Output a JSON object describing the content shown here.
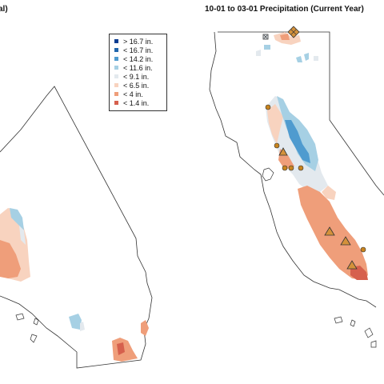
{
  "titles": {
    "left_fragment": "al)",
    "right": "10-01 to 03-01 Precipitation (Current Year)"
  },
  "legend": [
    {
      "label": "> 16.7 in.",
      "color": "#0b3d91"
    },
    {
      "label": "< 16.7 in.",
      "color": "#2166ac"
    },
    {
      "label": "< 14.2 in.",
      "color": "#4f9bcf"
    },
    {
      "label": "< 11.6 in.",
      "color": "#a6d0e4"
    },
    {
      "label": "< 9.1 in.",
      "color": "#e3e9ee"
    },
    {
      "label": "< 6.5 in.",
      "color": "#f8d3bf"
    },
    {
      "label": "< 4 in.",
      "color": "#ef9e7a"
    },
    {
      "label": "< 1.4 in.",
      "color": "#d6604d"
    }
  ],
  "marker_colors": {
    "station_dot": "#c8841e",
    "station_triangle": "#d4913a",
    "outline": "#333333"
  }
}
